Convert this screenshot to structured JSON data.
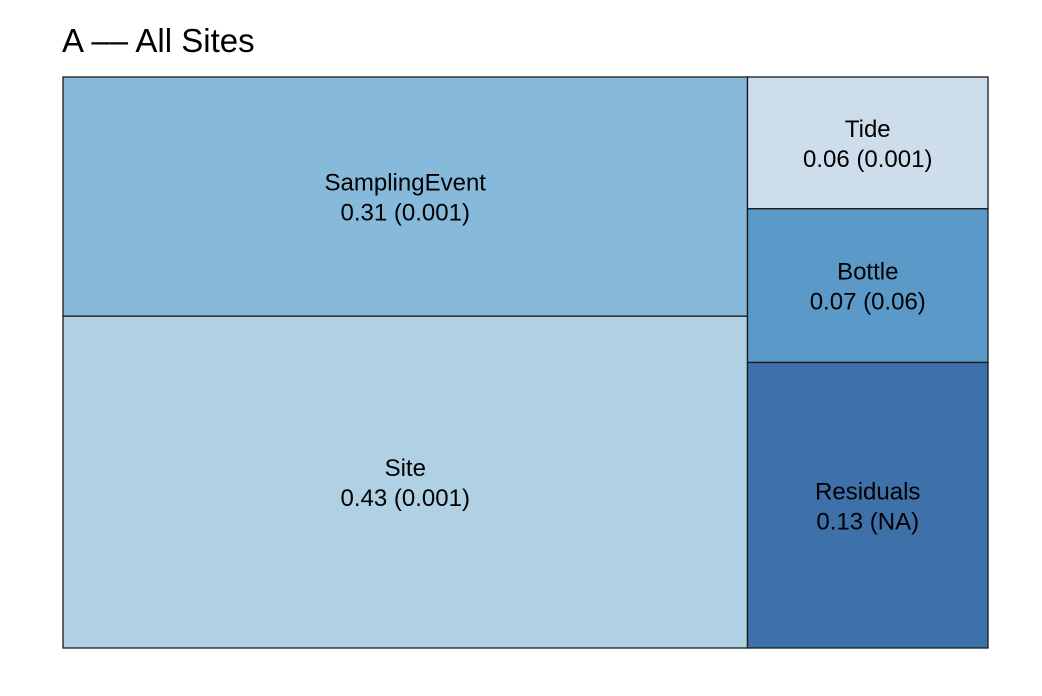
{
  "title": "A –– All Sites",
  "chart_data": {
    "type": "treemap",
    "title": "A –– All Sites",
    "items": [
      {
        "name": "SamplingEvent",
        "value": 0.31,
        "label": "0.31 (0.001)",
        "color": "#86b9da"
      },
      {
        "name": "Site",
        "value": 0.43,
        "label": "0.43 (0.001)",
        "color": "#b0d1e3"
      },
      {
        "name": "Tide",
        "value": 0.06,
        "label": "0.06 (0.001)",
        "color": "#cdddec"
      },
      {
        "name": "Bottle",
        "value": 0.07,
        "label": "0.07 (0.06)",
        "color": "#5b9ac8"
      },
      {
        "name": "Residuals",
        "value": 0.13,
        "label": "0.13 (NA)",
        "color": "#3e70a9"
      }
    ]
  }
}
